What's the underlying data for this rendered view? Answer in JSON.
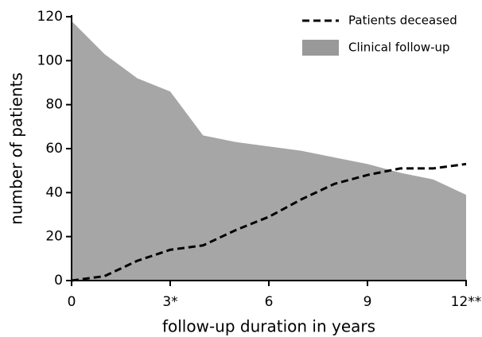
{
  "chart_data": {
    "type": "line",
    "x": [
      0,
      1,
      2,
      3,
      4,
      5,
      6,
      7,
      8,
      9,
      10,
      11,
      12
    ],
    "series": [
      {
        "name": "Patients deceased",
        "type": "line",
        "color": "#000000",
        "values": [
          0,
          2,
          9,
          14,
          16,
          23,
          29,
          37,
          44,
          48,
          51,
          51,
          53
        ]
      },
      {
        "name": "Clinical follow-up",
        "type": "area",
        "color": "#a6a6a6",
        "values": [
          118,
          103,
          92,
          86,
          66,
          63,
          61,
          59,
          56,
          53,
          49,
          46,
          39
        ]
      }
    ],
    "xlabel": "follow-up duration in years",
    "ylabel": "number of patients",
    "xlim": [
      0,
      12
    ],
    "xticks": [
      0,
      {
        "value": 3,
        "label": "3*"
      },
      6,
      9,
      {
        "value": 12,
        "label": "12**"
      }
    ],
    "ylim": [
      0,
      120
    ],
    "yticks": [
      0,
      20,
      40,
      60,
      80,
      100,
      120
    ],
    "legend": "upper right"
  }
}
